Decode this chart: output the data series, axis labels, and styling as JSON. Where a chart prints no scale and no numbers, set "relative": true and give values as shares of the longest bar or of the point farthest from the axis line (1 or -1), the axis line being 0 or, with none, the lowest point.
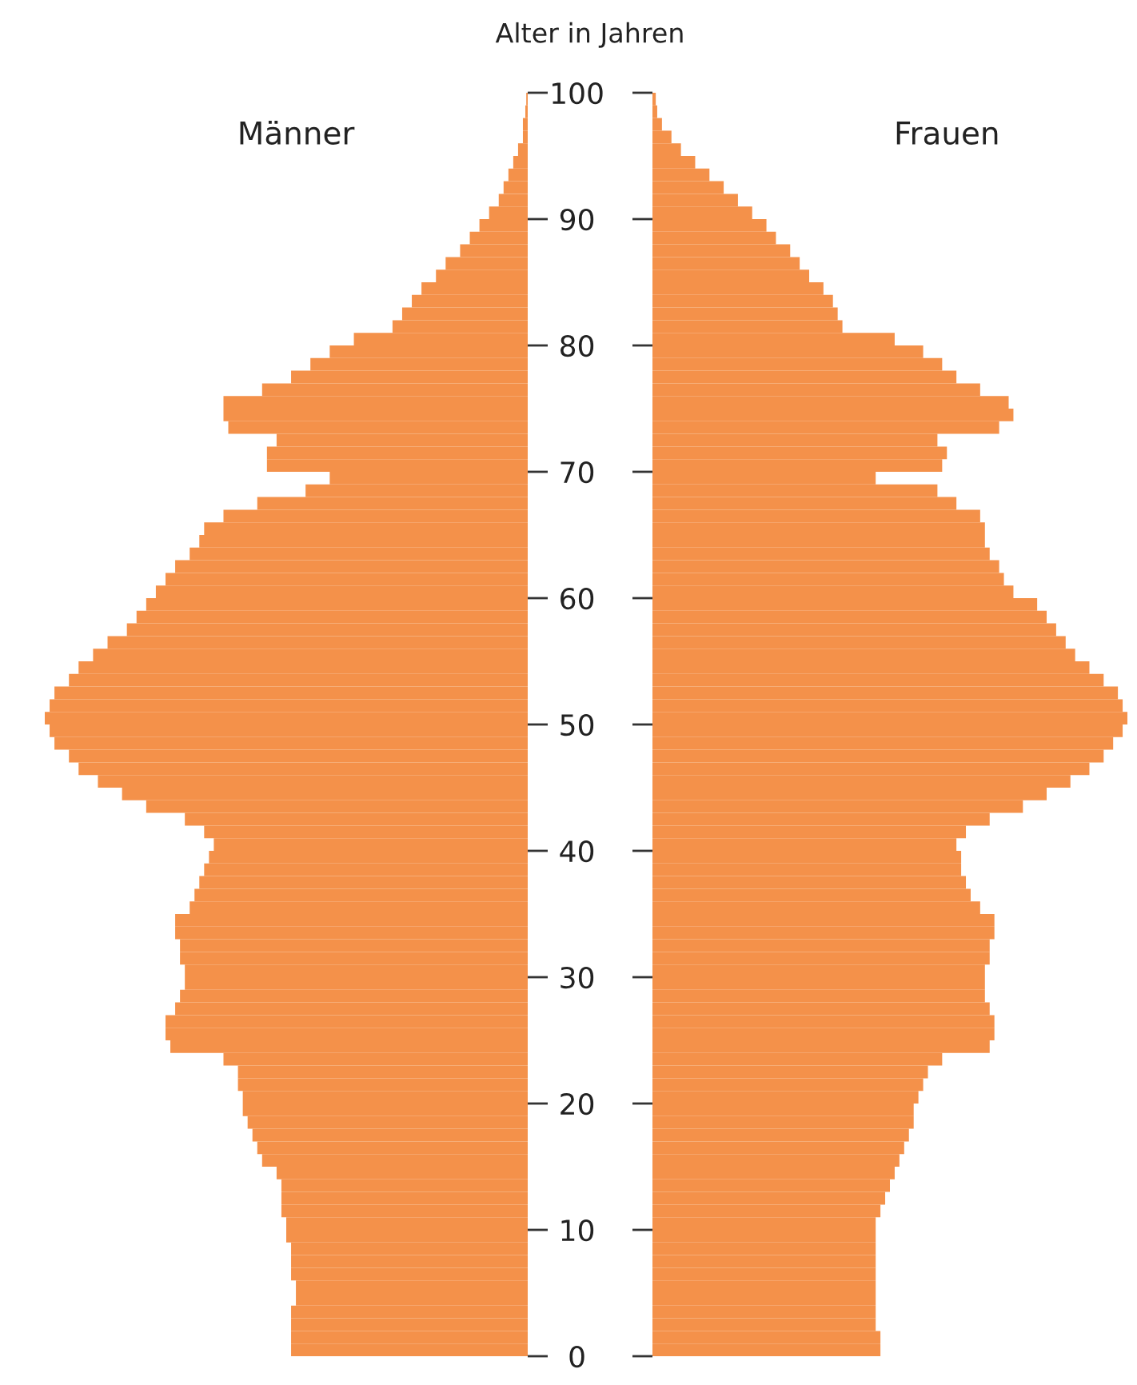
{
  "chart_data": [
    {
      "type": "bar",
      "orientation": "horizontal",
      "relative": true,
      "title": "Männer",
      "color": "#f4914a",
      "x": [
        0.5,
        1.5,
        2.5,
        3.5,
        4.5,
        5.5,
        6.5,
        7.5,
        8.5,
        9.5,
        10.5,
        11.5,
        12.5,
        13.5,
        14.5,
        15.5,
        16.5,
        17.5,
        18.5,
        19.5,
        20.5,
        21.5,
        22.5,
        23.5,
        24.5,
        25.5,
        26.5,
        27.5,
        28.5,
        29.5,
        30.5,
        31.5,
        32.5,
        33.5,
        34.5,
        35.5,
        36.5,
        37.5,
        38.5,
        39.5,
        40.5,
        41.5,
        42.5,
        43.5,
        44.5,
        45.5,
        46.5,
        47.5,
        48.5,
        49.5,
        50.5,
        51.5,
        52.5,
        53.5,
        54.5,
        55.5,
        56.5,
        57.5,
        58.5,
        59.5,
        60.5,
        61.5,
        62.5,
        63.5,
        64.5,
        65.5,
        66.5,
        67.5,
        68.5,
        69.5,
        70.5,
        71.5,
        72.5,
        73.5,
        74.5,
        75.5,
        76.5,
        77.5,
        78.5,
        79.5,
        80.5,
        81.5,
        82.5,
        83.5,
        84.5,
        85.5,
        86.5,
        87.5,
        88.5,
        89.5,
        90.5,
        91.5,
        92.5,
        93.5,
        94.5,
        95.5,
        96.5,
        97.5,
        98.5,
        99.5
      ],
      "ylim": [
        0,
        100
      ],
      "yticks": [
        0,
        10,
        20,
        30,
        40,
        50,
        60,
        70,
        80,
        90,
        100
      ],
      "tick_labels": false,
      "values": [
        -0.49,
        -0.49,
        -0.49,
        -0.49,
        -0.48,
        -0.48,
        -0.49,
        -0.49,
        -0.49,
        -0.5,
        -0.5,
        -0.51,
        -0.51,
        -0.51,
        -0.52,
        -0.55,
        -0.56,
        -0.57,
        -0.58,
        -0.59,
        -0.59,
        -0.6,
        -0.6,
        -0.63,
        -0.74,
        -0.75,
        -0.75,
        -0.73,
        -0.72,
        -0.71,
        -0.71,
        -0.72,
        -0.72,
        -0.73,
        -0.73,
        -0.7,
        -0.69,
        -0.68,
        -0.67,
        -0.66,
        -0.65,
        -0.67,
        -0.71,
        -0.79,
        -0.84,
        -0.89,
        -0.93,
        -0.95,
        -0.98,
        -0.99,
        -1.0,
        -0.99,
        -0.98,
        -0.95,
        -0.93,
        -0.9,
        -0.87,
        -0.83,
        -0.81,
        -0.79,
        -0.77,
        -0.75,
        -0.73,
        -0.7,
        -0.68,
        -0.67,
        -0.63,
        -0.56,
        -0.46,
        -0.41,
        -0.54,
        -0.54,
        -0.52,
        -0.62,
        -0.63,
        -0.63,
        -0.55,
        -0.49,
        -0.45,
        -0.41,
        -0.36,
        -0.28,
        -0.26,
        -0.24,
        -0.22,
        -0.19,
        -0.17,
        -0.14,
        -0.12,
        -0.1,
        -0.08,
        -0.06,
        -0.05,
        -0.04,
        -0.03,
        -0.02,
        -0.01,
        -0.01,
        -0.005,
        -0.003
      ]
    },
    {
      "type": "bar",
      "orientation": "horizontal",
      "relative": true,
      "title": "Frauen",
      "color": "#f4914a",
      "ylabel": "Alter in Jahren",
      "x": [
        0.5,
        1.5,
        2.5,
        3.5,
        4.5,
        5.5,
        6.5,
        7.5,
        8.5,
        9.5,
        10.5,
        11.5,
        12.5,
        13.5,
        14.5,
        15.5,
        16.5,
        17.5,
        18.5,
        19.5,
        20.5,
        21.5,
        22.5,
        23.5,
        24.5,
        25.5,
        26.5,
        27.5,
        28.5,
        29.5,
        30.5,
        31.5,
        32.5,
        33.5,
        34.5,
        35.5,
        36.5,
        37.5,
        38.5,
        39.5,
        40.5,
        41.5,
        42.5,
        43.5,
        44.5,
        45.5,
        46.5,
        47.5,
        48.5,
        49.5,
        50.5,
        51.5,
        52.5,
        53.5,
        54.5,
        55.5,
        56.5,
        57.5,
        58.5,
        59.5,
        60.5,
        61.5,
        62.5,
        63.5,
        64.5,
        65.5,
        66.5,
        67.5,
        68.5,
        69.5,
        70.5,
        71.5,
        72.5,
        73.5,
        74.5,
        75.5,
        76.5,
        77.5,
        78.5,
        79.5,
        80.5,
        81.5,
        82.5,
        83.5,
        84.5,
        85.5,
        86.5,
        87.5,
        88.5,
        89.5,
        90.5,
        91.5,
        92.5,
        93.5,
        94.5,
        95.5,
        96.5,
        97.5,
        98.5,
        99.5
      ],
      "ylim": [
        0,
        100
      ],
      "yticks": [
        0,
        10,
        20,
        30,
        40,
        50,
        60,
        70,
        80,
        90,
        100
      ],
      "tick_labels": "y",
      "values": [
        0.48,
        0.48,
        0.47,
        0.47,
        0.47,
        0.47,
        0.47,
        0.47,
        0.47,
        0.47,
        0.47,
        0.48,
        0.49,
        0.5,
        0.51,
        0.52,
        0.53,
        0.54,
        0.55,
        0.55,
        0.56,
        0.57,
        0.58,
        0.61,
        0.71,
        0.72,
        0.72,
        0.71,
        0.7,
        0.7,
        0.7,
        0.71,
        0.71,
        0.72,
        0.72,
        0.69,
        0.67,
        0.66,
        0.65,
        0.65,
        0.64,
        0.66,
        0.71,
        0.78,
        0.83,
        0.88,
        0.92,
        0.95,
        0.97,
        0.99,
        1.0,
        0.99,
        0.98,
        0.95,
        0.92,
        0.89,
        0.87,
        0.85,
        0.83,
        0.81,
        0.76,
        0.74,
        0.73,
        0.71,
        0.7,
        0.7,
        0.69,
        0.64,
        0.6,
        0.47,
        0.61,
        0.62,
        0.6,
        0.73,
        0.76,
        0.75,
        0.69,
        0.64,
        0.61,
        0.57,
        0.51,
        0.4,
        0.39,
        0.38,
        0.36,
        0.33,
        0.31,
        0.29,
        0.26,
        0.24,
        0.21,
        0.18,
        0.15,
        0.12,
        0.09,
        0.06,
        0.04,
        0.02,
        0.01,
        0.007
      ]
    }
  ]
}
